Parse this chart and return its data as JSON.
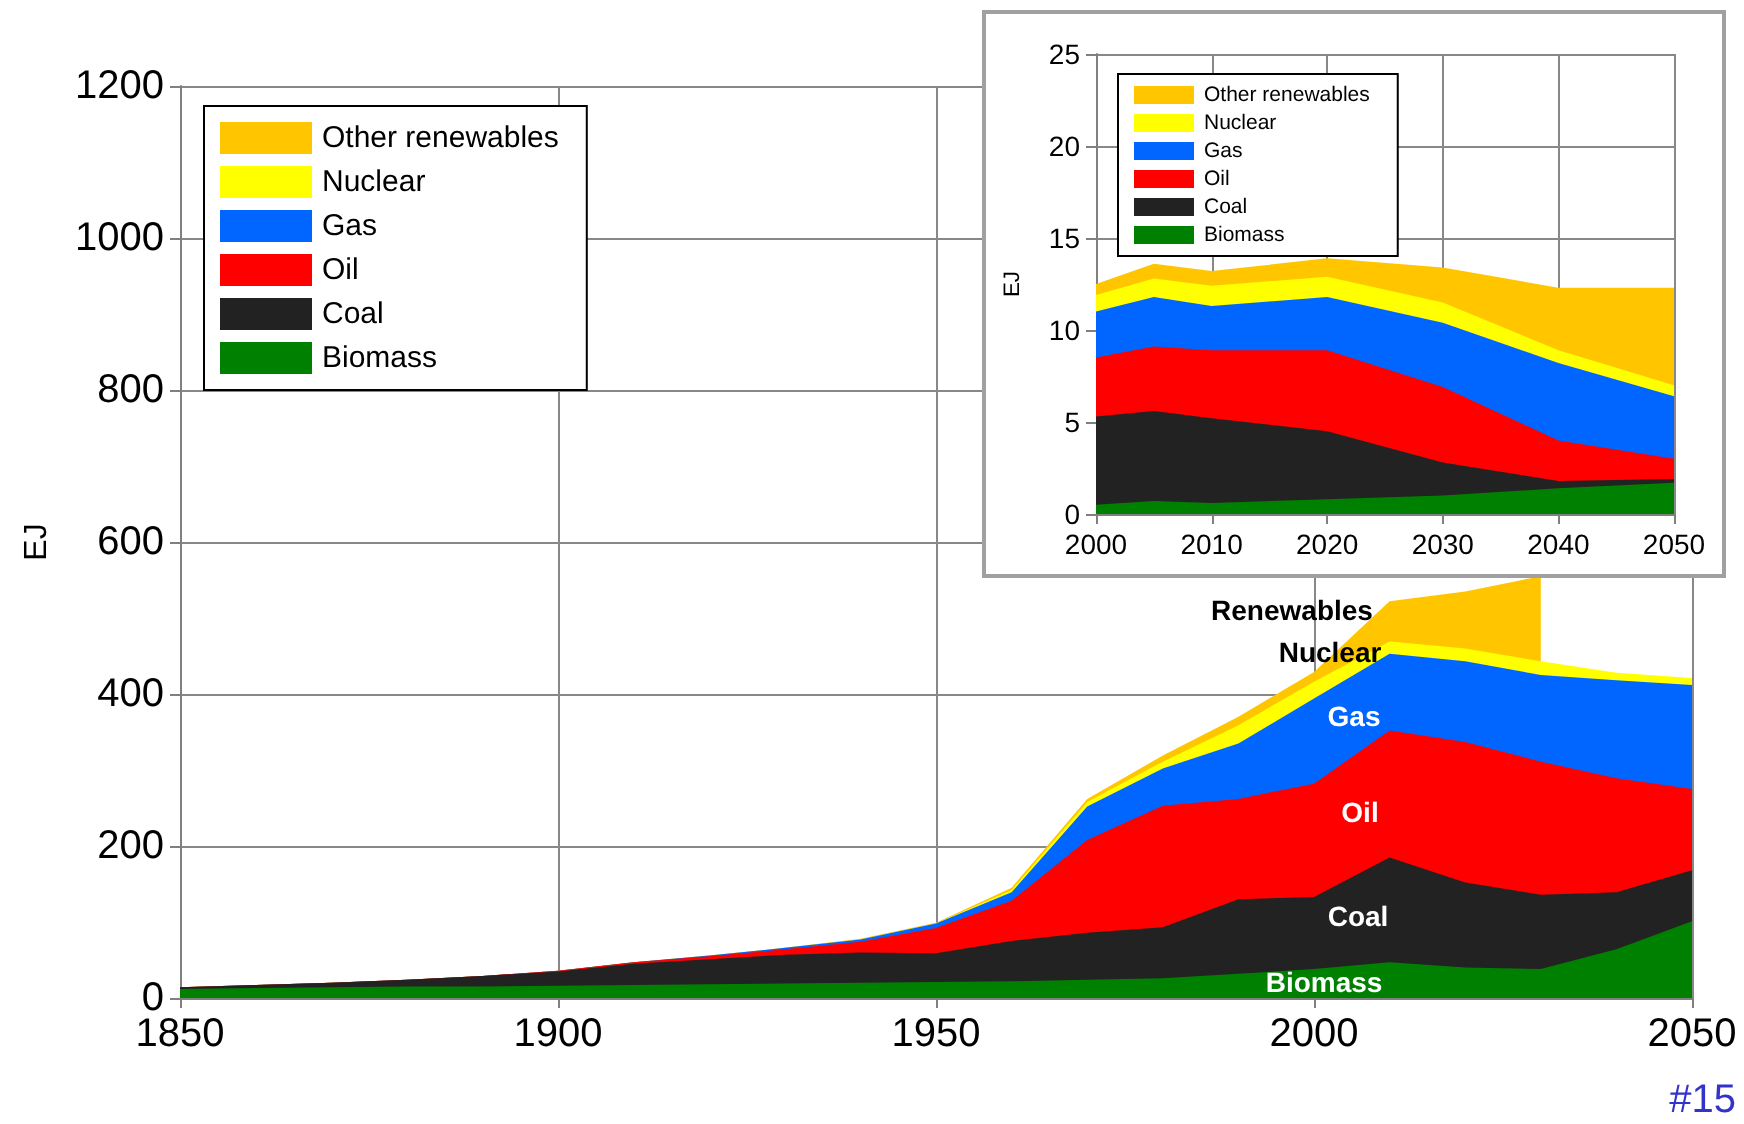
{
  "chart_data": [
    {
      "type": "area",
      "stacked": true,
      "ylabel": "EJ",
      "x": [
        1850,
        1860,
        1870,
        1880,
        1890,
        1900,
        1910,
        1920,
        1930,
        1940,
        1950,
        1960,
        1970,
        1980,
        1990,
        2000,
        2010,
        2020,
        2030,
        2040,
        2050
      ],
      "series": [
        {
          "name": "Biomass",
          "color": "#008000",
          "values": [
            12,
            13,
            14,
            15,
            15,
            16,
            17,
            18,
            19,
            20,
            21,
            22,
            24,
            26,
            32,
            38,
            47,
            40,
            38,
            64,
            101
          ]
        },
        {
          "name": "Coal",
          "color": "#222222",
          "values": [
            2,
            4,
            6,
            9,
            14,
            19,
            28,
            33,
            38,
            40,
            38,
            53,
            62,
            67,
            98,
            95,
            138,
            112,
            98,
            75,
            67
          ]
        },
        {
          "name": "Oil",
          "color": "#ff0000",
          "values": [
            0,
            0,
            0,
            0,
            0,
            1,
            2,
            4,
            7,
            14,
            33,
            53,
            122,
            160,
            132,
            149,
            167,
            185,
            175,
            150,
            107
          ]
        },
        {
          "name": "Gas",
          "color": "#0066ff",
          "values": [
            0,
            0,
            0,
            0,
            0,
            0,
            0,
            1,
            2,
            3,
            6,
            11,
            44,
            49,
            73,
            112,
            101,
            106,
            114,
            129,
            137
          ]
        },
        {
          "name": "Nuclear",
          "color": "#ffff00",
          "values": [
            0,
            0,
            0,
            0,
            0,
            0,
            0,
            0,
            0,
            0,
            0,
            3,
            6,
            9,
            24,
            22,
            16,
            17,
            18,
            10,
            9
          ]
        },
        {
          "name": "Other renewables",
          "color": "#ffc600",
          "values": [
            0,
            0,
            0,
            0,
            0,
            0,
            0,
            0,
            0,
            1,
            1,
            3,
            4,
            8,
            11,
            13,
            53,
            75,
            112,
            null,
            null
          ]
        }
      ],
      "xlim": [
        1850,
        2050
      ],
      "xticks": [
        1850,
        1900,
        1950,
        2000,
        2050
      ],
      "ylim": [
        0,
        1200
      ],
      "yticks": [
        0,
        200,
        400,
        600,
        800,
        1000,
        1200
      ],
      "grid": true,
      "legend": "top left",
      "annotations": [
        "Renewables",
        "Nuclear",
        "Gas",
        "Oil",
        "Coal",
        "Biomass",
        "#15"
      ]
    },
    {
      "type": "area",
      "stacked": true,
      "ylabel": "EJ",
      "x": [
        2000,
        2005,
        2010,
        2020,
        2030,
        2040,
        2050
      ],
      "series": [
        {
          "name": "Biomass",
          "color": "#008000",
          "values": [
            0.5,
            0.7,
            0.6,
            0.8,
            1.0,
            1.4,
            1.7
          ]
        },
        {
          "name": "Coal",
          "color": "#222222",
          "values": [
            4.8,
            4.9,
            4.6,
            3.7,
            1.8,
            0.4,
            0.2
          ]
        },
        {
          "name": "Oil",
          "color": "#ff0000",
          "values": [
            3.2,
            3.5,
            3.7,
            4.4,
            4.1,
            2.2,
            1.1
          ]
        },
        {
          "name": "Gas",
          "color": "#0066ff",
          "values": [
            2.5,
            2.7,
            2.4,
            2.9,
            3.5,
            4.2,
            3.4
          ]
        },
        {
          "name": "Nuclear",
          "color": "#ffff00",
          "values": [
            0.9,
            1.0,
            1.1,
            1.1,
            1.1,
            0.7,
            0.6
          ]
        },
        {
          "name": "Other renewables",
          "color": "#ffc600",
          "values": [
            0.6,
            0.8,
            0.8,
            1.0,
            1.9,
            3.4,
            5.3
          ]
        }
      ],
      "xlim": [
        2000,
        2050
      ],
      "xticks": [
        2000,
        2010,
        2020,
        2030,
        2040,
        2050
      ],
      "ylim": [
        0,
        25
      ],
      "yticks": [
        0,
        5,
        10,
        15,
        20,
        25
      ],
      "grid": true,
      "legend": "top left"
    }
  ]
}
